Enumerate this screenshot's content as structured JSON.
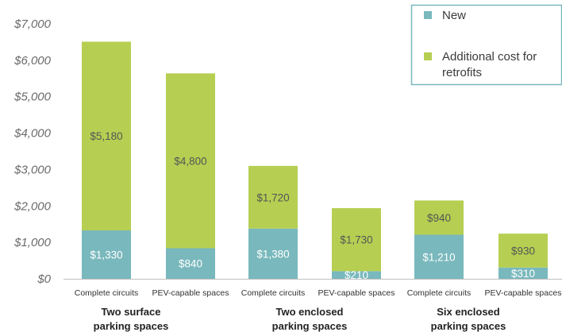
{
  "chart_data": {
    "type": "bar",
    "stacked": true,
    "categories": [
      "Complete circuits",
      "PEV-capable spaces",
      "Complete circuits",
      "PEV-capable spaces",
      "Complete circuits",
      "PEV-capable spaces"
    ],
    "groups": [
      {
        "lines": [
          "Two surface",
          "parking spaces"
        ],
        "categories": [
          0,
          1
        ]
      },
      {
        "lines": [
          "Two enclosed",
          "parking spaces"
        ],
        "categories": [
          2,
          3
        ]
      },
      {
        "lines": [
          "Six enclosed",
          "parking spaces"
        ],
        "categories": [
          4,
          5
        ]
      }
    ],
    "series": [
      {
        "name": "New",
        "values": [
          1330,
          840,
          1380,
          210,
          1210,
          310
        ],
        "labels": [
          "$1,330",
          "$840",
          "$1,380",
          "$210",
          "$1,210",
          "$310"
        ],
        "color": "#79b8bd",
        "label_color": "#ffffff"
      },
      {
        "name": "Additional cost for retrofits",
        "legend_lines": [
          "Additional cost for",
          "retrofits"
        ],
        "values": [
          5180,
          4800,
          1720,
          1730,
          940,
          930
        ],
        "labels": [
          "$5,180",
          "$4,800",
          "$1,720",
          "$1,730",
          "$940",
          "$930"
        ],
        "color": "#b6cf52",
        "label_color": "#555555"
      }
    ],
    "ylim": [
      0,
      7000
    ],
    "yticks": [
      0,
      1000,
      2000,
      3000,
      4000,
      5000,
      6000,
      7000
    ],
    "ytick_labels": [
      "$0",
      "$1,000",
      "$2,000",
      "$3,000",
      "$4,000",
      "$5,000",
      "$6,000",
      "$7,000"
    ],
    "grid": false,
    "legend_position": "top-right",
    "legend_border_color": "#79b8bd",
    "axis_color": "#bfbfbf"
  }
}
